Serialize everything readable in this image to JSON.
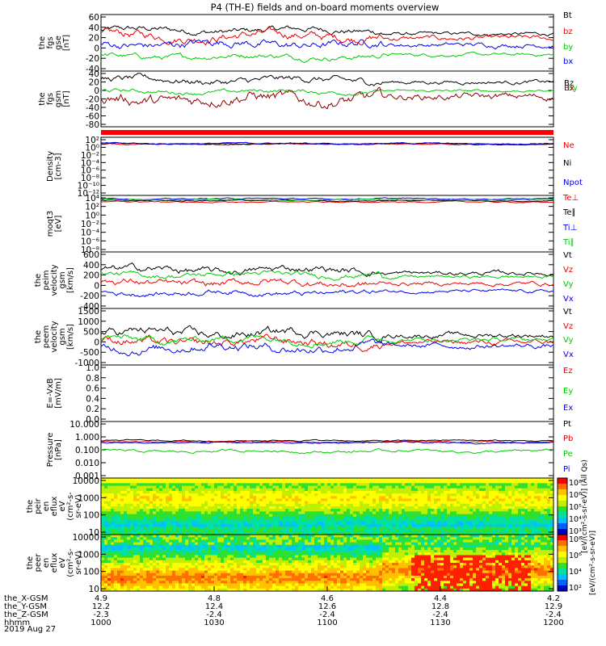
{
  "title": "P4 (TH-E) fields and on-board moments overview",
  "date_label": "2019 Aug 27",
  "chart_data": {
    "type": "line",
    "x_axis": {
      "hhmm_ticks": [
        "1000",
        "1030",
        "1100",
        "1130",
        "1200"
      ],
      "rows": [
        {
          "label": "the_X-GSM",
          "values": [
            "4.9",
            "4.8",
            "4.6",
            "4.4",
            "4.2"
          ]
        },
        {
          "label": "the_Y-GSM",
          "values": [
            "12.2",
            "12.4",
            "12.6",
            "12.8",
            "12.9"
          ]
        },
        {
          "label": "the_Z-GSM",
          "values": [
            "-2.3",
            "-2.4",
            "-2.4",
            "-2.4",
            "-2.4"
          ]
        },
        {
          "label": "hhmm",
          "values": [
            "1000",
            "1030",
            "1100",
            "1130",
            "1200"
          ]
        }
      ]
    },
    "panels": [
      {
        "id": "fgs-gse",
        "ylabel": [
          "the",
          "fgs",
          "gse",
          "[nT]"
        ],
        "yticks": [
          "60",
          "40",
          "20",
          "0",
          "-20",
          "-40"
        ],
        "ylim": [
          -40,
          60
        ],
        "series": [
          {
            "name": "Bt",
            "color": "#000000",
            "level": 32,
            "amp": 7
          },
          {
            "name": "bz",
            "color": "#ee0000",
            "level": 22,
            "amp": 10
          },
          {
            "name": "by",
            "color": "#00cc00",
            "level": -14,
            "amp": 6
          },
          {
            "name": "bx",
            "color": "#0000ee",
            "level": 8,
            "amp": 9
          }
        ]
      },
      {
        "id": "fgs-gsm",
        "ylabel": [
          "the",
          "fgs",
          "gsm",
          "[nT]"
        ],
        "yticks": [
          "40",
          "20",
          "0",
          "-20",
          "-40",
          "-60",
          "-80"
        ],
        "ylim": [
          -90,
          40
        ],
        "series": [
          {
            "name": "Bz",
            "color": "#000000",
            "level": 18,
            "amp": 10
          },
          {
            "name": "By",
            "color": "#00cc00",
            "level": -8,
            "amp": 6
          },
          {
            "name": "Bx",
            "color": "#8b0000",
            "level": -25,
            "amp": 18
          }
        ]
      },
      {
        "id": "mode-bar",
        "ylabel": [],
        "yticks": [],
        "series": []
      },
      {
        "id": "density",
        "ylabel": [
          "Density",
          "[cm-3]"
        ],
        "yticks": [
          "10²",
          "10⁰",
          "10⁻²",
          "10⁻⁴",
          "10⁻⁶",
          "10⁻⁸",
          "10⁻¹⁰",
          "10⁻¹²"
        ],
        "log": true,
        "series": [
          {
            "name": "Ne",
            "color": "#ee0000",
            "level": 0.3,
            "amp": 0.2
          },
          {
            "name": "Ni",
            "color": "#000000",
            "level": 0.4,
            "amp": 0.2
          },
          {
            "name": "Npot",
            "color": "#0000ee",
            "level": 0.5,
            "amp": 0.2
          }
        ]
      },
      {
        "id": "temperature",
        "ylabel": [
          "moqt3",
          "[eV]"
        ],
        "yticks": [
          "10⁴",
          "10²",
          "10⁰",
          "10⁻²",
          "10⁻⁴",
          "10⁻⁶",
          "10⁻⁸"
        ],
        "log": true,
        "series": [
          {
            "name": "Te⊥",
            "color": "#ee0000",
            "level": 2.6,
            "amp": 0.15
          },
          {
            "name": "Te∥",
            "color": "#000000",
            "level": 2.9,
            "amp": 0.15
          },
          {
            "name": "Ti⊥",
            "color": "#0000ee",
            "level": 3.3,
            "amp": 0.15
          },
          {
            "name": "Ti∥",
            "color": "#00cc00",
            "level": 3.1,
            "amp": 0.15
          }
        ]
      },
      {
        "id": "peim-velocity",
        "ylabel": [
          "the",
          "peim",
          "velocity",
          "gsm",
          "[km/s]"
        ],
        "yticks": [
          "600",
          "400",
          "200",
          "0",
          "-200",
          "-400"
        ],
        "ylim": [
          -400,
          600
        ],
        "series": [
          {
            "name": "Vt",
            "color": "#000000",
            "level": 280,
            "amp": 80
          },
          {
            "name": "Vz",
            "color": "#ee0000",
            "level": 50,
            "amp": 80
          },
          {
            "name": "Vy",
            "color": "#00cc00",
            "level": 200,
            "amp": 60
          },
          {
            "name": "Vx",
            "color": "#0000ee",
            "level": -120,
            "amp": 60
          }
        ]
      },
      {
        "id": "peem-velocity",
        "ylabel": [
          "the",
          "peem",
          "velocity",
          "gsm",
          "[km/s]"
        ],
        "yticks": [
          "1500",
          "1000",
          "500",
          "0",
          "-500",
          "-1000"
        ],
        "ylim": [
          -1000,
          1500
        ],
        "series": [
          {
            "name": "Vt",
            "color": "#000000",
            "level": 400,
            "amp": 250
          },
          {
            "name": "Vz",
            "color": "#ee0000",
            "level": 0,
            "amp": 250
          },
          {
            "name": "Vy",
            "color": "#00cc00",
            "level": 150,
            "amp": 200
          },
          {
            "name": "Vx",
            "color": "#0000ee",
            "level": -200,
            "amp": 250
          }
        ]
      },
      {
        "id": "efield",
        "ylabel": [
          "E=-VxB",
          "[mV/m]"
        ],
        "yticks": [
          "1.0",
          "0.8",
          "0.6",
          "0.4",
          "0.2",
          "0.0"
        ],
        "ylim": [
          0,
          1
        ],
        "series": [
          {
            "name": "Ez",
            "color": "#ee0000"
          },
          {
            "name": "Ey",
            "color": "#00cc00"
          },
          {
            "name": "Ex",
            "color": "#0000ee"
          }
        ]
      },
      {
        "id": "pressure",
        "ylabel": [
          "Pressure",
          "[nPa]"
        ],
        "yticks": [
          "10.000",
          "1.000",
          "0.100",
          "0.010",
          "0.001"
        ],
        "log": true,
        "series": [
          {
            "name": "Pt",
            "color": "#000000",
            "level": -0.35,
            "amp": 0.06
          },
          {
            "name": "Pb",
            "color": "#ee0000",
            "level": -0.45,
            "amp": 0.06
          },
          {
            "name": "Pe",
            "color": "#00cc00",
            "level": -1.1,
            "amp": 0.12
          },
          {
            "name": "Pi",
            "color": "#0000ee",
            "level": -0.5,
            "amp": 0.06
          }
        ]
      },
      {
        "id": "peir-eflux",
        "ylabel": [
          "the",
          "peir",
          "en",
          "eflux",
          "eV",
          "(cm²-s-",
          "sr-eV)"
        ],
        "yticks": [
          "10000",
          "1000",
          "100",
          "10"
        ],
        "spectrogram": true
      },
      {
        "id": "peer-eflux",
        "ylabel": [
          "the",
          "peer",
          "en",
          "eflux",
          "eV",
          "(cm²-s-",
          "sr-eV)"
        ],
        "yticks": [
          "10000",
          "1000",
          "100",
          "10"
        ],
        "spectrogram": true
      }
    ],
    "colorbars": [
      {
        "ticks": [
          "10⁸",
          "10⁶",
          "10⁵",
          "10⁴",
          "10³"
        ],
        "label": "[eV/(cm²-s-sr-eV)] (All Qs)"
      },
      {
        "ticks": [
          "10⁸",
          "10⁶",
          "10⁴",
          "10²"
        ],
        "label": "[eV/(cm²-s-sr-eV)]"
      }
    ]
  }
}
